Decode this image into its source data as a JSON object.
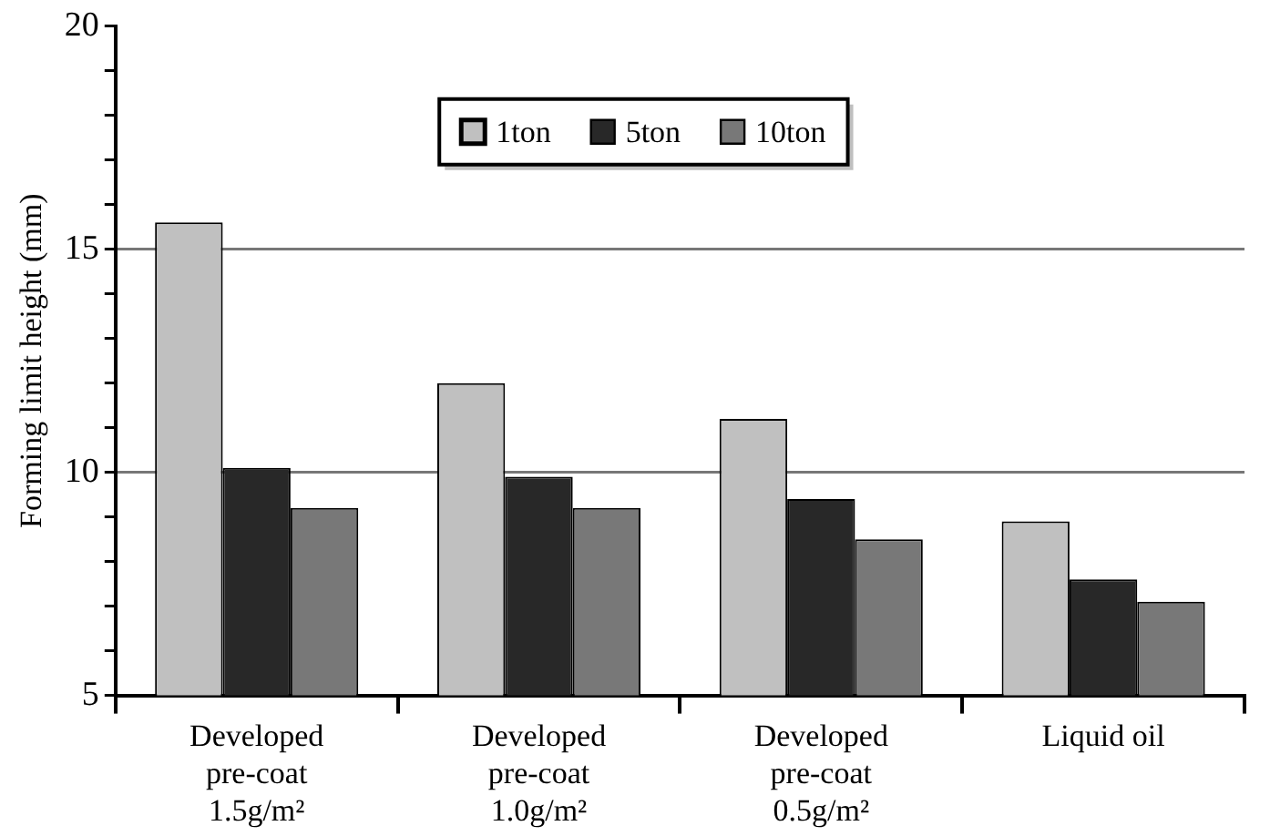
{
  "chart_data": {
    "type": "bar",
    "ylabel": "Forming limit height (mm)",
    "categories": [
      "Developed\npre-coat\n1.5g/m²",
      "Developed\npre-coat\n1.0g/m²",
      "Developed\npre-coat\n0.5g/m²",
      "Liquid oil"
    ],
    "series": [
      {
        "name": "1ton",
        "color": "#c0c0c0",
        "values": [
          15.6,
          12.0,
          11.2,
          8.9
        ]
      },
      {
        "name": "5ton",
        "color": "#282828",
        "values": [
          10.1,
          9.9,
          9.4,
          7.6
        ]
      },
      {
        "name": "10ton",
        "color": "#787878",
        "values": [
          9.2,
          9.2,
          8.5,
          7.1
        ]
      }
    ],
    "ylim": [
      5,
      20
    ],
    "yticks": [
      5,
      {
        "value": 6,
        "label": null
      },
      {
        "value": 7,
        "label": null
      },
      {
        "value": 8,
        "label": null
      },
      {
        "value": 9,
        "label": null
      },
      10,
      {
        "value": 11,
        "label": null
      },
      {
        "value": 12,
        "label": null
      },
      {
        "value": 13,
        "label": null
      },
      {
        "value": 14,
        "label": null
      },
      15,
      {
        "value": 16,
        "label": null
      },
      {
        "value": 17,
        "label": null
      },
      {
        "value": 18,
        "label": null
      },
      {
        "value": 19,
        "label": null
      },
      20
    ],
    "grid": "y",
    "legend": "top"
  }
}
